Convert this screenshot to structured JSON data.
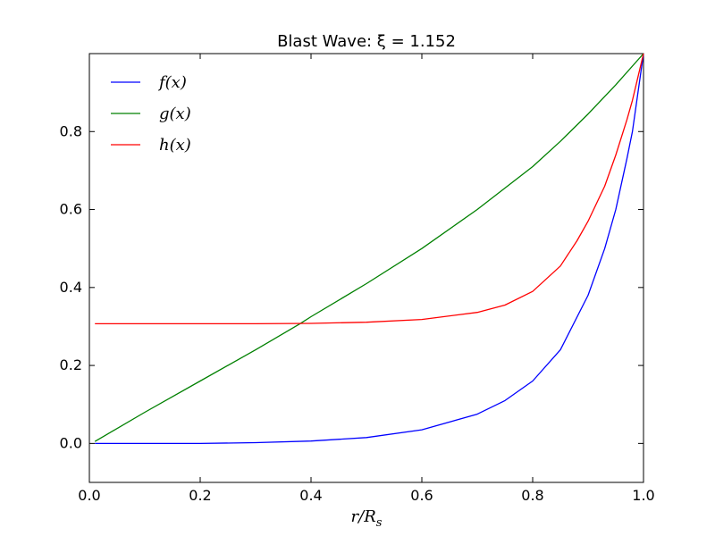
{
  "chart_data": {
    "type": "line",
    "title": "Blast Wave: ξ = 1.152",
    "xlabel": "r/R",
    "xlabel_subscript": "s",
    "ylabel": "",
    "xlim": [
      0.0,
      1.0
    ],
    "ylim": [
      -0.1,
      1.0
    ],
    "xticks": [
      0.0,
      0.2,
      0.4,
      0.6,
      0.8,
      1.0
    ],
    "xtick_labels": [
      "0.0",
      "0.2",
      "0.4",
      "0.6",
      "0.8",
      "1.0"
    ],
    "yticks": [
      0.0,
      0.2,
      0.4,
      0.6,
      0.8
    ],
    "ytick_labels": [
      "0.0",
      "0.2",
      "0.4",
      "0.6",
      "0.8"
    ],
    "grid": false,
    "legend_position": "top-left",
    "series": [
      {
        "name": "f(x)",
        "color": "#0000ff",
        "x": [
          0.01,
          0.1,
          0.2,
          0.3,
          0.4,
          0.5,
          0.6,
          0.7,
          0.75,
          0.8,
          0.85,
          0.9,
          0.93,
          0.95,
          0.97,
          0.98,
          0.99,
          1.0
        ],
        "y": [
          0.0,
          0.0,
          0.0,
          0.002,
          0.006,
          0.015,
          0.035,
          0.075,
          0.11,
          0.16,
          0.24,
          0.38,
          0.5,
          0.6,
          0.73,
          0.8,
          0.9,
          1.0
        ]
      },
      {
        "name": "g(x)",
        "color": "#008000",
        "x": [
          0.01,
          0.1,
          0.2,
          0.3,
          0.38,
          0.4,
          0.5,
          0.6,
          0.7,
          0.8,
          0.85,
          0.9,
          0.95,
          1.0
        ],
        "y": [
          0.005,
          0.08,
          0.16,
          0.24,
          0.307,
          0.325,
          0.41,
          0.5,
          0.6,
          0.71,
          0.775,
          0.845,
          0.92,
          1.0
        ]
      },
      {
        "name": "h(x)",
        "color": "#ff0000",
        "x": [
          0.01,
          0.1,
          0.2,
          0.3,
          0.4,
          0.5,
          0.6,
          0.7,
          0.75,
          0.8,
          0.85,
          0.88,
          0.9,
          0.93,
          0.95,
          0.97,
          0.98,
          0.99,
          1.0
        ],
        "y": [
          0.307,
          0.307,
          0.307,
          0.307,
          0.308,
          0.311,
          0.318,
          0.336,
          0.355,
          0.39,
          0.455,
          0.52,
          0.57,
          0.66,
          0.74,
          0.83,
          0.88,
          0.94,
          1.0
        ]
      }
    ]
  }
}
